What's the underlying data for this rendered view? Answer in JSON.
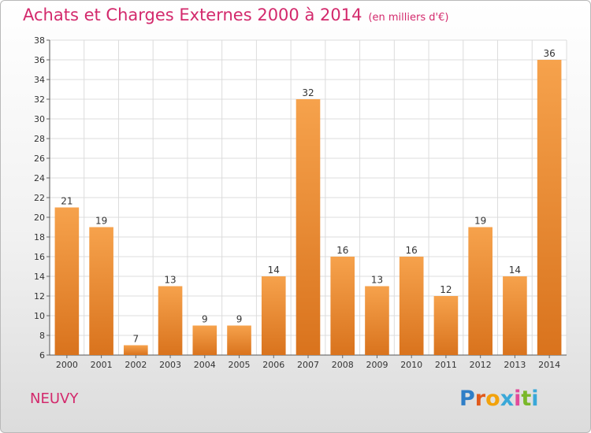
{
  "header": {
    "title": "Achats et Charges Externes 2000 à 2014",
    "subtitle": "(en milliers d'€)"
  },
  "footer": {
    "place": "NEUVY",
    "logo": [
      "P",
      "r",
      "o",
      "x",
      "i",
      "t",
      "i"
    ]
  },
  "colors": {
    "title": "#d3296c",
    "bar_light": "#f6a24c",
    "bar_dark": "#d9731d",
    "grid": "#dcdcdc",
    "logo": [
      "#2f7ec7",
      "#e05a1c",
      "#f2a20c",
      "#3aa8d8",
      "#e24a9a",
      "#79b829",
      "#3aa8d8"
    ]
  },
  "chart_data": {
    "type": "bar",
    "categories": [
      "2000",
      "2001",
      "2002",
      "2003",
      "2004",
      "2005",
      "2006",
      "2007",
      "2008",
      "2009",
      "2010",
      "2011",
      "2012",
      "2013",
      "2014"
    ],
    "values": [
      21,
      19,
      7,
      13,
      9,
      9,
      14,
      32,
      16,
      13,
      16,
      12,
      19,
      14,
      36
    ],
    "title": "Achats et Charges Externes 2000 à 2014",
    "xlabel": "",
    "ylabel": "",
    "ylim": [
      6,
      38
    ],
    "yticks": [
      6,
      8,
      10,
      12,
      14,
      16,
      18,
      20,
      22,
      24,
      26,
      28,
      30,
      32,
      34,
      36,
      38
    ],
    "grid": true
  }
}
